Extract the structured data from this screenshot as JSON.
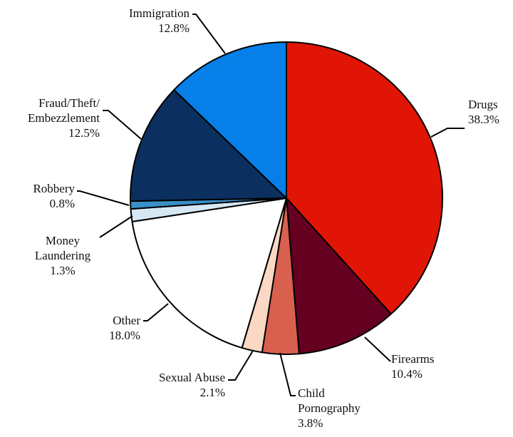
{
  "chart_data": {
    "type": "pie",
    "title": "",
    "start_angle_deg": 0,
    "direction": "clockwise",
    "slices": [
      {
        "name": "Drugs",
        "label_lines": [
          "Drugs"
        ],
        "value_label": "38.3%",
        "value": 38.3,
        "color": "#E01506"
      },
      {
        "name": "Firearms",
        "label_lines": [
          "Firearms"
        ],
        "value_label": "10.4%",
        "value": 10.4,
        "color": "#650021"
      },
      {
        "name": "Child Pornography",
        "label_lines": [
          "Child",
          "Pornography"
        ],
        "value_label": "3.8%",
        "value": 3.8,
        "color": "#D9604E"
      },
      {
        "name": "Sexual Abuse",
        "label_lines": [
          "Sexual Abuse"
        ],
        "value_label": "2.1%",
        "value": 2.1,
        "color": "#FBD8C4"
      },
      {
        "name": "Other",
        "label_lines": [
          "Other"
        ],
        "value_label": "18.0%",
        "value": 18.0,
        "color": "#FFFFFF"
      },
      {
        "name": "Money Laundering",
        "label_lines": [
          "Money",
          "Laundering"
        ],
        "value_label": "1.3%",
        "value": 1.3,
        "color": "#D6E8F4"
      },
      {
        "name": "Robbery",
        "label_lines": [
          "Robbery"
        ],
        "value_label": "0.8%",
        "value": 0.8,
        "color": "#3A8FC8"
      },
      {
        "name": "Fraud/Theft/Embezzlement",
        "label_lines": [
          "Fraud/Theft/",
          "Embezzlement"
        ],
        "value_label": "12.5%",
        "value": 12.5,
        "color": "#0B2F5E"
      },
      {
        "name": "Immigration",
        "label_lines": [
          "Immigration"
        ],
        "value_label": "12.8%",
        "value": 12.8,
        "color": "#0680E8"
      }
    ]
  }
}
